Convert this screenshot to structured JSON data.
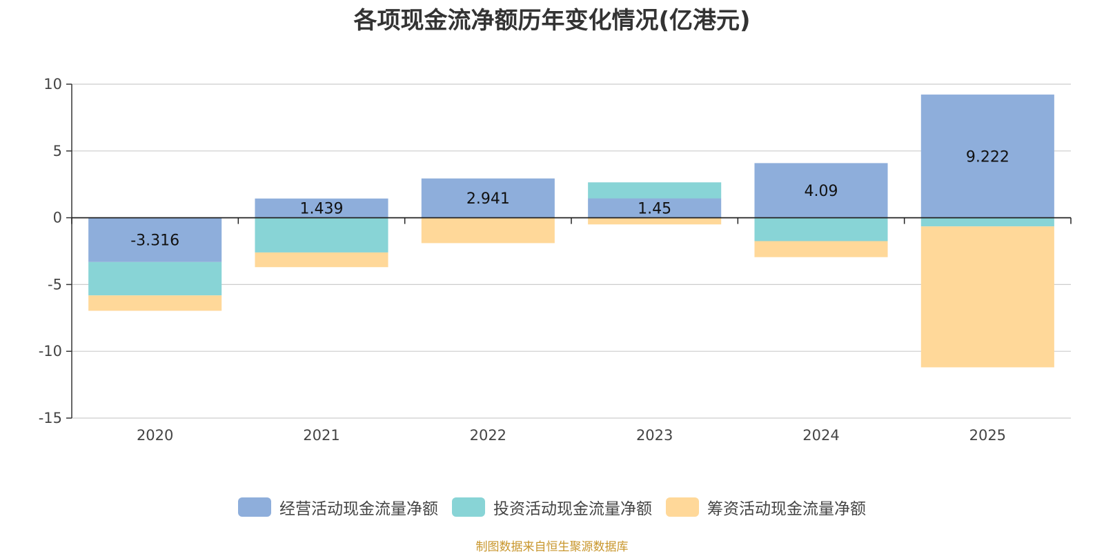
{
  "title": "各项现金流净额历年变化情况(亿港元)",
  "source_note": "制图数据来自恒生聚源数据库",
  "chart_data": {
    "type": "bar",
    "stacked": true,
    "title": "各项现金流净额历年变化情况(亿港元)",
    "categories": [
      "2020",
      "2021",
      "2022",
      "2023",
      "2024",
      "2025"
    ],
    "ylim": [
      -15,
      10
    ],
    "yticks": [
      10,
      5,
      0,
      -5,
      -10,
      -15
    ],
    "grid": true,
    "legend_position": "bottom",
    "series": [
      {
        "name": "经营活动现金流量净额",
        "color": "#8eaedb",
        "values": [
          -3.316,
          1.439,
          2.941,
          1.45,
          4.09,
          9.222
        ]
      },
      {
        "name": "投资活动现金流量净额",
        "color": "#88d4d6",
        "values": [
          -2.5,
          -2.6,
          0.0,
          1.2,
          -1.75,
          -0.65
        ]
      },
      {
        "name": "筹资活动现金流量净额",
        "color": "#ffd899",
        "values": [
          -1.15,
          -1.1,
          -1.9,
          -0.5,
          -1.2,
          -10.55
        ]
      }
    ],
    "data_labels": [
      "-3.316",
      "1.439",
      "2.941",
      "1.45",
      "4.09",
      "9.222"
    ]
  }
}
